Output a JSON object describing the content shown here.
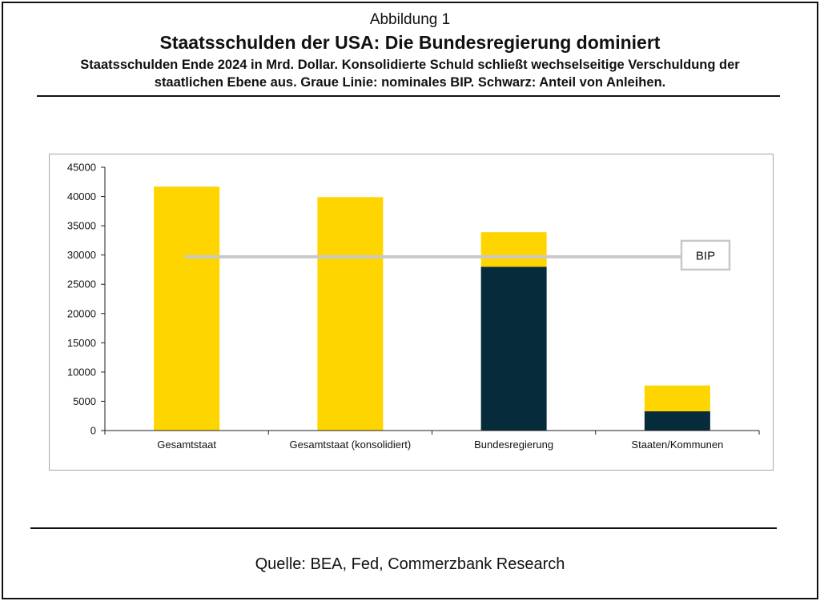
{
  "header": {
    "label": "Abbildung 1",
    "title": "Staatsschulden der USA: Die Bundesregierung dominiert",
    "subtitle_line1": "Staatsschulden Ende 2024 in Mrd. Dollar. Konsolidierte Schuld schließt wechselseitige Verschuldung der",
    "subtitle_line2": "staatlichen Ebene aus. Graue Linie: nominales BIP. Schwarz: Anteil von Anleihen."
  },
  "footer": {
    "source": "Quelle: BEA, Fed, Commerzbank Research"
  },
  "colors": {
    "yellow": "#FFD500",
    "navy": "#062B3A",
    "gdp_line": "#C8C8C8",
    "axis": "#1F1F1F",
    "text": "#111111"
  },
  "chart_data": {
    "type": "bar",
    "stacked": true,
    "categories": [
      "Gesamtstaat",
      "Gesamtstaat (konsolidiert)",
      "Bundesregierung",
      "Staaten/Kommunen"
    ],
    "series": [
      {
        "values": [
          0,
          0,
          28000,
          3300
        ],
        "color": "#062B3A"
      },
      {
        "values": [
          41700,
          39900,
          5900,
          4400
        ],
        "color": "#FFD500"
      }
    ],
    "totals": [
      41700,
      39900,
      33900,
      7700
    ],
    "yticks": [
      0,
      5000,
      10000,
      15000,
      20000,
      25000,
      30000,
      35000,
      40000,
      45000
    ],
    "ylim": [
      0,
      45000
    ],
    "reference_line": {
      "label": "BIP",
      "value": 29700
    },
    "grid": false,
    "legend": "none"
  }
}
